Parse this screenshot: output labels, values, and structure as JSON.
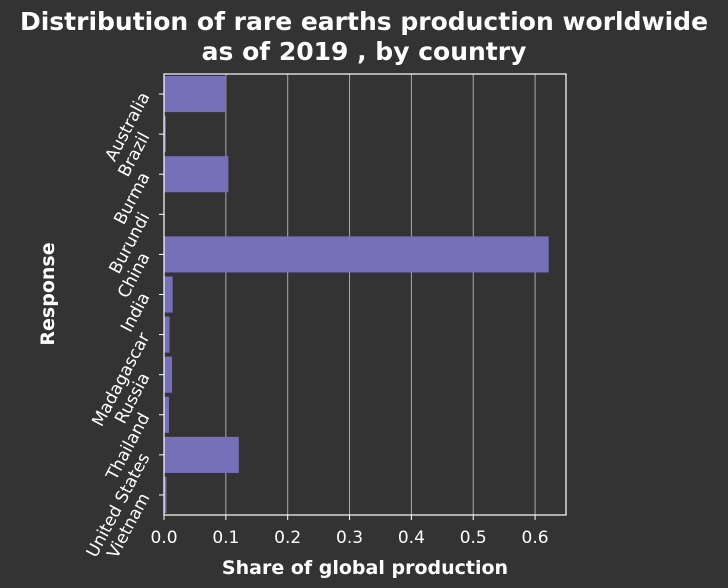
{
  "chart_data": {
    "type": "bar",
    "orientation": "horizontal",
    "title_lines": [
      "Distribution of rare earths production worldwide",
      "as of 2019 , by country"
    ],
    "xlabel": "Share of global production",
    "ylabel": "Response",
    "categories": [
      "Australia",
      "Brazil",
      "Burma",
      "Burundi",
      "China",
      "India",
      "Madagascar",
      "Russia",
      "Thailand",
      "United States",
      "Vietnam"
    ],
    "values": [
      0.1,
      0.003,
      0.104,
      0.0005,
      0.622,
      0.014,
      0.009,
      0.013,
      0.008,
      0.121,
      0.004
    ],
    "xlim": [
      0,
      0.65
    ],
    "xticks": [
      0.0,
      0.1,
      0.2,
      0.3,
      0.4,
      0.5,
      0.6
    ],
    "xtick_labels": [
      "0.0",
      "0.1",
      "0.2",
      "0.3",
      "0.4",
      "0.5",
      "0.6"
    ],
    "grid": true,
    "colors": {
      "background": "#333333",
      "bar": "#7570b8",
      "grid": "#aaaaaa",
      "text": "#ffffff"
    }
  }
}
